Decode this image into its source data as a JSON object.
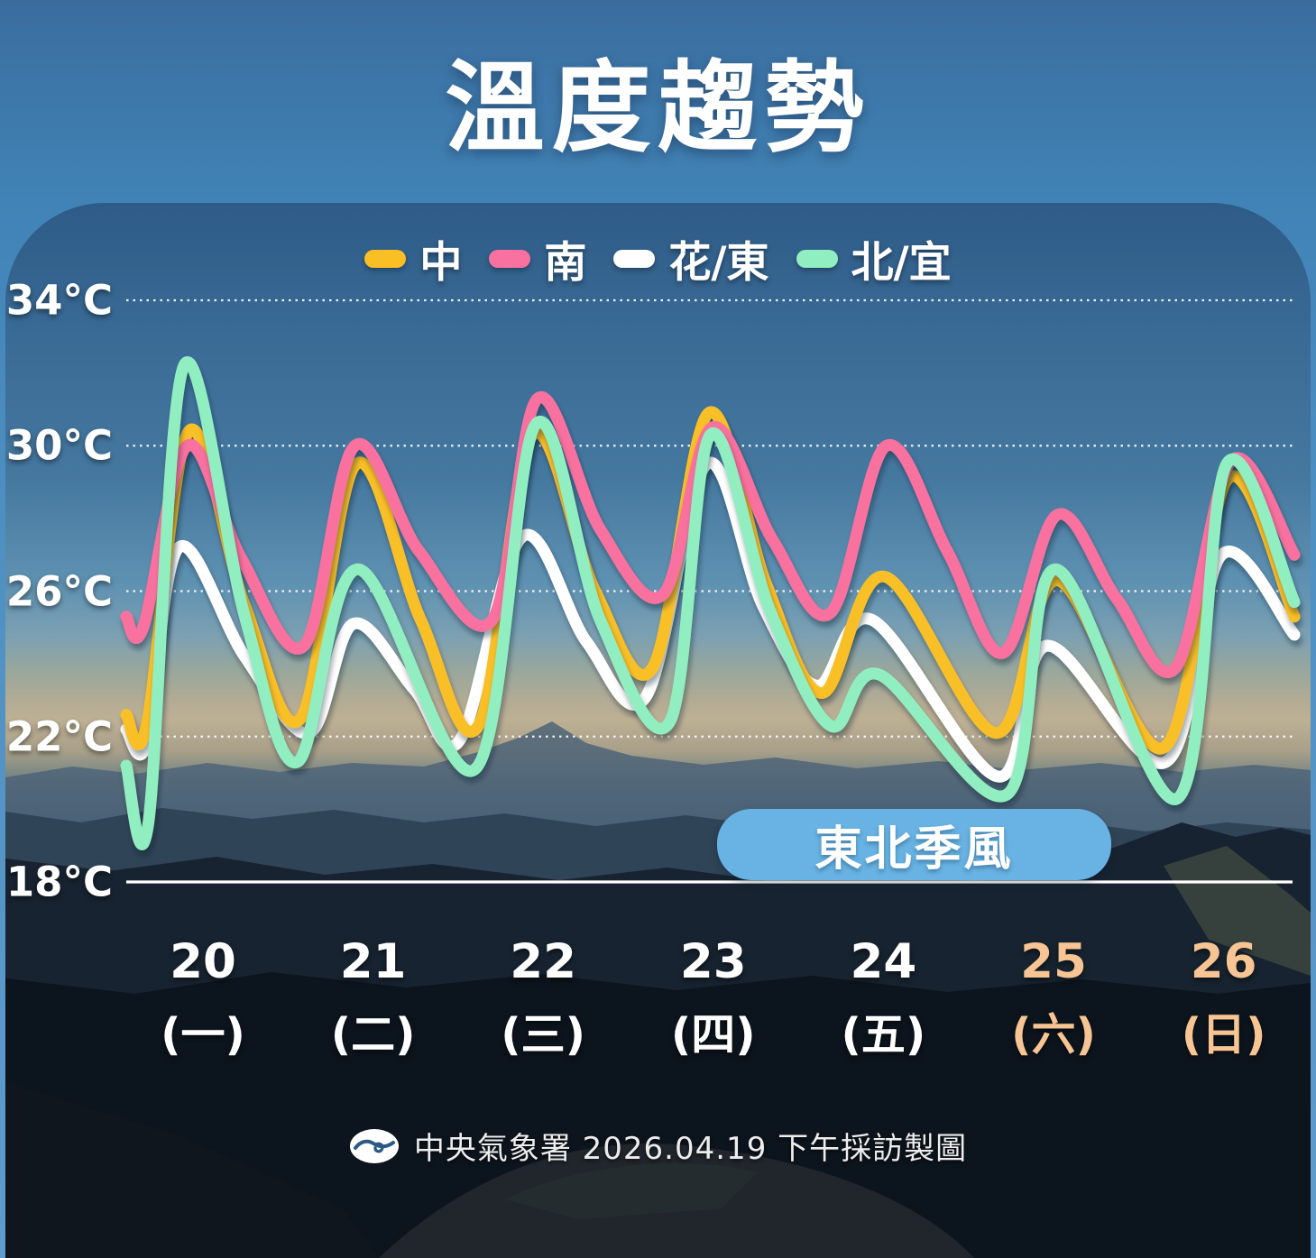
{
  "title": "溫度趨勢",
  "badge": {
    "label": "東北季風",
    "bg": "#68B3E3"
  },
  "footer": {
    "source": "中央氣象署 2026.04.19 下午採訪製圖",
    "logo": "cwa-wave-logo"
  },
  "y_axis": {
    "unit": "°C",
    "ticks": [
      {
        "value": 34,
        "label": "34°C"
      },
      {
        "value": 30,
        "label": "30°C"
      },
      {
        "value": 26,
        "label": "26°C"
      },
      {
        "value": 22,
        "label": "22°C"
      },
      {
        "value": 18,
        "label": "18°C"
      }
    ]
  },
  "x_axis": {
    "days": [
      {
        "date": "20",
        "weekday": "(一)",
        "is_weekend": false
      },
      {
        "date": "21",
        "weekday": "(二)",
        "is_weekend": false
      },
      {
        "date": "22",
        "weekday": "(三)",
        "is_weekend": false
      },
      {
        "date": "23",
        "weekday": "(四)",
        "is_weekend": false
      },
      {
        "date": "24",
        "weekday": "(五)",
        "is_weekend": false
      },
      {
        "date": "25",
        "weekday": "(六)",
        "is_weekend": true
      },
      {
        "date": "26",
        "weekday": "(日)",
        "is_weekend": true
      }
    ],
    "weekend_color": "#F7C493"
  },
  "chart_data": {
    "type": "line",
    "title": "溫度趨勢",
    "ylabel": "°C",
    "ylim": [
      18,
      34
    ],
    "gridline_values": [
      34,
      30,
      26,
      22
    ],
    "baseline_value": 18,
    "x_unit": "days from 2026-04-20 (fractional day position)",
    "x_range": [
      0,
      6.9
    ],
    "legend_position": "top-center",
    "grid": "dotted-horizontal",
    "series": [
      {
        "name": "中",
        "color": "#F9BF25",
        "points": [
          [
            0,
            22.6
          ],
          [
            0.12,
            22.3
          ],
          [
            0.37,
            30.4
          ],
          [
            0.7,
            25.6
          ],
          [
            1.03,
            22.5
          ],
          [
            1.36,
            29.5
          ],
          [
            1.74,
            25.2
          ],
          [
            2.08,
            22.3
          ],
          [
            2.4,
            30.3
          ],
          [
            2.77,
            26.0
          ],
          [
            3.11,
            23.9
          ],
          [
            3.44,
            30.9
          ],
          [
            3.78,
            26.2
          ],
          [
            4.11,
            23.2
          ],
          [
            4.48,
            26.4
          ],
          [
            5.14,
            22.1
          ],
          [
            5.5,
            26.3
          ],
          [
            6.13,
            21.7
          ],
          [
            6.51,
            29.1
          ],
          [
            6.9,
            25.3
          ]
        ]
      },
      {
        "name": "南",
        "color": "#F9719E",
        "points": [
          [
            0,
            25.3
          ],
          [
            0.1,
            25.0
          ],
          [
            0.36,
            30.0
          ],
          [
            0.68,
            26.9
          ],
          [
            1.05,
            24.5
          ],
          [
            1.35,
            30.0
          ],
          [
            1.73,
            27.1
          ],
          [
            2.16,
            25.2
          ],
          [
            2.43,
            31.3
          ],
          [
            2.8,
            27.7
          ],
          [
            3.17,
            25.9
          ],
          [
            3.46,
            30.5
          ],
          [
            3.82,
            27.4
          ],
          [
            4.16,
            25.4
          ],
          [
            4.49,
            30.0
          ],
          [
            4.85,
            27.1
          ],
          [
            5.18,
            24.3
          ],
          [
            5.5,
            28.1
          ],
          [
            5.85,
            25.8
          ],
          [
            6.2,
            23.9
          ],
          [
            6.53,
            29.6
          ],
          [
            6.9,
            27.0
          ]
        ]
      },
      {
        "name": "花/東",
        "color": "#FFFFFF",
        "points": [
          [
            0,
            22.2
          ],
          [
            0.12,
            21.8
          ],
          [
            0.31,
            27.2
          ],
          [
            0.7,
            24.2
          ],
          [
            1.08,
            22.1
          ],
          [
            1.34,
            25.1
          ],
          [
            1.7,
            23.3
          ],
          [
            1.97,
            21.9
          ],
          [
            2.34,
            27.5
          ],
          [
            2.72,
            24.6
          ],
          [
            3.07,
            23.1
          ],
          [
            3.43,
            29.5
          ],
          [
            3.76,
            25.6
          ],
          [
            4.08,
            23.4
          ],
          [
            4.41,
            25.2
          ],
          [
            5.15,
            20.9
          ],
          [
            5.44,
            24.5
          ],
          [
            6.14,
            21.3
          ],
          [
            6.47,
            27.0
          ],
          [
            6.9,
            24.8
          ]
        ]
      },
      {
        "name": "北/宜",
        "color": "#90EEC1",
        "points": [
          [
            0,
            21.2
          ],
          [
            0.13,
            19.6
          ],
          [
            0.34,
            32.2
          ],
          [
            0.7,
            25.3
          ],
          [
            1.01,
            21.3
          ],
          [
            1.37,
            26.6
          ],
          [
            2.06,
            21.1
          ],
          [
            2.42,
            30.6
          ],
          [
            2.8,
            25.2
          ],
          [
            3.21,
            22.4
          ],
          [
            3.45,
            30.3
          ],
          [
            3.8,
            25.5
          ],
          [
            4.16,
            22.3
          ],
          [
            4.45,
            23.7
          ],
          [
            5.2,
            20.4
          ],
          [
            5.49,
            26.6
          ],
          [
            6.21,
            20.3
          ],
          [
            6.5,
            29.5
          ],
          [
            6.9,
            25.7
          ]
        ]
      }
    ]
  }
}
